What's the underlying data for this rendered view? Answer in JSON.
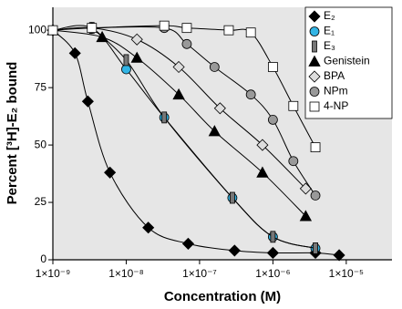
{
  "chart_data": {
    "type": "line",
    "xlabel": "Concentration (M)",
    "ylabel": "Percent [³H]-E₂ bound",
    "xscale": "log",
    "xlim": [
      1e-09,
      4.2e-05
    ],
    "ylim": [
      0,
      110
    ],
    "xticks": [
      {
        "value": 1e-09,
        "label": "1×10⁻⁹"
      },
      {
        "value": 1e-08,
        "label": "1×10⁻⁸"
      },
      {
        "value": 1e-07,
        "label": "1×10⁻⁷"
      },
      {
        "value": 1e-06,
        "label": "1×10⁻⁶"
      },
      {
        "value": 1e-05,
        "label": "1×10⁻⁵"
      }
    ],
    "yticks": [
      0,
      25,
      50,
      75,
      100
    ],
    "legend": "upper right",
    "series": [
      {
        "name": "E₂",
        "color": "#000000",
        "marker": "diamond",
        "x": [
          1e-09,
          2e-09,
          3e-09,
          6e-09,
          2e-08,
          7e-08,
          3e-07,
          1e-06,
          3.8e-06,
          8e-06
        ],
        "values": [
          100,
          90,
          69,
          38,
          14,
          7,
          4,
          3,
          3,
          2
        ]
      },
      {
        "name": "E₁",
        "color": "#33b5e5",
        "marker": "circle",
        "x": [
          1e-09,
          3.4e-09,
          1e-08,
          3.3e-08,
          2.8e-07,
          1e-06,
          3.8e-06
        ],
        "values": [
          100,
          101,
          83,
          62,
          27,
          10,
          5
        ]
      },
      {
        "name": "E₃",
        "color": "#777777",
        "marker": "bar",
        "x": [
          3.4e-09,
          1e-08,
          3.3e-08,
          2.8e-07,
          1e-06,
          3.8e-06
        ],
        "values": [
          101,
          87,
          62,
          27,
          10,
          5
        ]
      },
      {
        "name": "Genistein",
        "color": "#000000",
        "marker": "triangle",
        "x": [
          1e-09,
          4.7e-09,
          1.4e-08,
          5.2e-08,
          1.6e-07,
          7.2e-07,
          2.8e-06
        ],
        "values": [
          100,
          97,
          88,
          72,
          56,
          38,
          19
        ]
      },
      {
        "name": "BPA",
        "color": "#dddddd",
        "marker": "diamond",
        "x": [
          1e-09,
          3.4e-09,
          1.4e-08,
          5.2e-08,
          1.9e-07,
          7.2e-07,
          2.8e-06
        ],
        "values": [
          100,
          101,
          96,
          84,
          66,
          50,
          31
        ]
      },
      {
        "name": "NPm",
        "color": "#999999",
        "marker": "circle",
        "x": [
          3.4e-09,
          3.3e-08,
          6.7e-08,
          1.6e-07,
          5e-07,
          1e-06,
          1.9e-06,
          3.8e-06
        ],
        "values": [
          101,
          101,
          94,
          84,
          72,
          61,
          43,
          28
        ]
      },
      {
        "name": "4-NP",
        "color": "#ffffff",
        "marker": "square",
        "x": [
          1e-09,
          3.4e-09,
          3.3e-08,
          6.7e-08,
          2.5e-07,
          5e-07,
          1e-06,
          1.9e-06,
          3.8e-06
        ],
        "values": [
          100,
          101,
          102,
          101,
          100,
          99,
          84,
          67,
          49
        ]
      }
    ]
  }
}
